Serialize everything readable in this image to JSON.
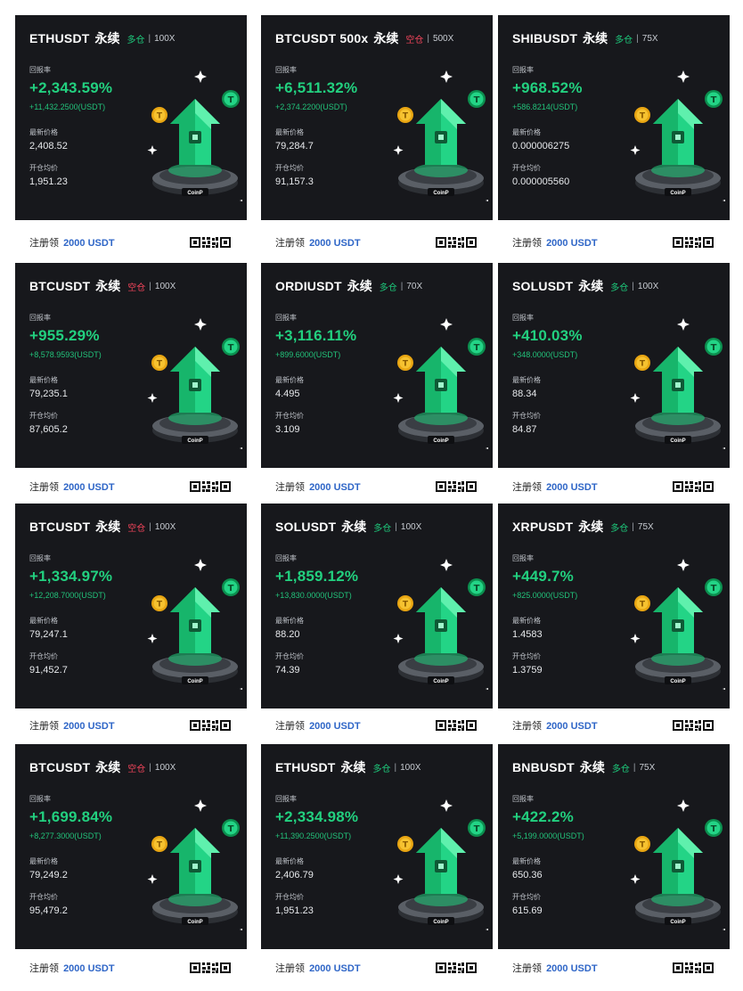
{
  "labels": {
    "roi": "回报率",
    "latest_price": "最新价格",
    "avg_open_price": "开仓均价",
    "perpetual": "永续",
    "promo_text": "注册领",
    "promo_amount": "2000 USDT",
    "brand": "CoinP"
  },
  "colors": {
    "background": "#ffffff",
    "card_bg": "#17181c",
    "profit_green": "#22d07f",
    "long_green": "#1dc77a",
    "short_red": "#f0445a",
    "promo_blue": "#2f66c7"
  },
  "icons": [
    "sparkle-icon",
    "coin-icon",
    "arrow-trophy-icon",
    "qr-code-icon"
  ],
  "cards": [
    {
      "symbol": "ETHUSDT",
      "side": "多仓",
      "side_type": "long",
      "leverage": "100X",
      "roi": "+2,343.59%",
      "pnl": "+11,432.2500(USDT)",
      "last_price": "2,408.52",
      "entry_price": "1,951.23"
    },
    {
      "symbol": "BTCUSDT 500x",
      "side": "空仓",
      "side_type": "short",
      "leverage": "500X",
      "roi": "+6,511.32%",
      "pnl": "+2,374.2200(USDT)",
      "last_price": "79,284.7",
      "entry_price": "91,157.3"
    },
    {
      "symbol": "SHIBUSDT",
      "side": "多仓",
      "side_type": "long",
      "leverage": "75X",
      "roi": "+968.52%",
      "pnl": "+586.8214(USDT)",
      "last_price": "0.000006275",
      "entry_price": "0.000005560"
    },
    {
      "symbol": "BTCUSDT",
      "side": "空仓",
      "side_type": "short",
      "leverage": "100X",
      "roi": "+955.29%",
      "pnl": "+8,578.9593(USDT)",
      "last_price": "79,235.1",
      "entry_price": "87,605.2"
    },
    {
      "symbol": "ORDIUSDT",
      "side": "多仓",
      "side_type": "long",
      "leverage": "70X",
      "roi": "+3,116.11%",
      "pnl": "+899.6000(USDT)",
      "last_price": "4.495",
      "entry_price": "3.109"
    },
    {
      "symbol": "SOLUSDT",
      "side": "多仓",
      "side_type": "long",
      "leverage": "100X",
      "roi": "+410.03%",
      "pnl": "+348.0000(USDT)",
      "last_price": "88.34",
      "entry_price": "84.87"
    },
    {
      "symbol": "BTCUSDT",
      "side": "空仓",
      "side_type": "short",
      "leverage": "100X",
      "roi": "+1,334.97%",
      "pnl": "+12,208.7000(USDT)",
      "last_price": "79,247.1",
      "entry_price": "91,452.7"
    },
    {
      "symbol": "SOLUSDT",
      "side": "多仓",
      "side_type": "long",
      "leverage": "100X",
      "roi": "+1,859.12%",
      "pnl": "+13,830.0000(USDT)",
      "last_price": "88.20",
      "entry_price": "74.39"
    },
    {
      "symbol": "XRPUSDT",
      "side": "多仓",
      "side_type": "long",
      "leverage": "75X",
      "roi": "+449.7%",
      "pnl": "+825.0000(USDT)",
      "last_price": "1.4583",
      "entry_price": "1.3759"
    },
    {
      "symbol": "BTCUSDT",
      "side": "空仓",
      "side_type": "short",
      "leverage": "100X",
      "roi": "+1,699.84%",
      "pnl": "+8,277.3000(USDT)",
      "last_price": "79,249.2",
      "entry_price": "95,479.2"
    },
    {
      "symbol": "ETHUSDT",
      "side": "多仓",
      "side_type": "long",
      "leverage": "100X",
      "roi": "+2,334.98%",
      "pnl": "+11,390.2500(USDT)",
      "last_price": "2,406.79",
      "entry_price": "1,951.23"
    },
    {
      "symbol": "BNBUSDT",
      "side": "多仓",
      "side_type": "long",
      "leverage": "75X",
      "roi": "+422.2%",
      "pnl": "+5,199.0000(USDT)",
      "last_price": "650.36",
      "entry_price": "615.69"
    }
  ]
}
